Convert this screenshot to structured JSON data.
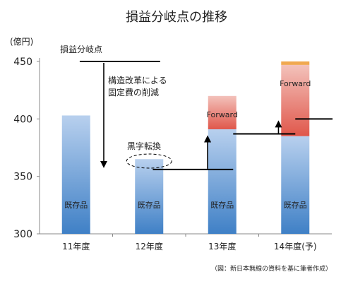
{
  "chart_data": {
    "type": "bar",
    "title": "損益分岐点の推移",
    "ylabel": "(億円)",
    "ylim": [
      300,
      450
    ],
    "yticks": [
      300,
      350,
      400,
      450
    ],
    "grid": false,
    "categories": [
      "11年度",
      "12年度",
      "13年度",
      "14年度(予)"
    ],
    "series": [
      {
        "name": "既存品",
        "values": [
          403,
          365,
          391,
          385
        ]
      },
      {
        "name": "Forward",
        "values": [
          0,
          0,
          29,
          62
        ]
      }
    ],
    "top_cap": {
      "category": "14年度(予)",
      "value": 3,
      "color": "#f0a850"
    },
    "segment_labels": {
      "existing": [
        "既存品",
        "既存品",
        "既存品",
        "既存品"
      ],
      "forward": [
        "",
        "",
        "Forward",
        "Forward"
      ]
    },
    "break_even_levels": [
      {
        "value": 450,
        "x_from": 0.55,
        "x_to": 1.65
      },
      {
        "value": 356,
        "x_from": 1.55,
        "x_to": 2.65
      },
      {
        "value": 387,
        "x_from": 2.65,
        "x_to": 3.5
      },
      {
        "value": 400,
        "x_from": 3.5,
        "x_to": 4.7
      }
    ],
    "annotations": {
      "break_even_label": "損益分岐点",
      "fixed_cost_cut": [
        "構造改革による",
        "固定費の削減"
      ],
      "turnaround": "黒字転換",
      "source": "（図：新日本無線の資料を基に筆者作成）"
    },
    "colors": {
      "existing_top": "#b8d0ee",
      "existing_bottom": "#3f80c6",
      "forward_top": "#f2b8b0",
      "forward_bottom": "#e25a4e",
      "axis": "#888888",
      "line": "#000000"
    }
  }
}
